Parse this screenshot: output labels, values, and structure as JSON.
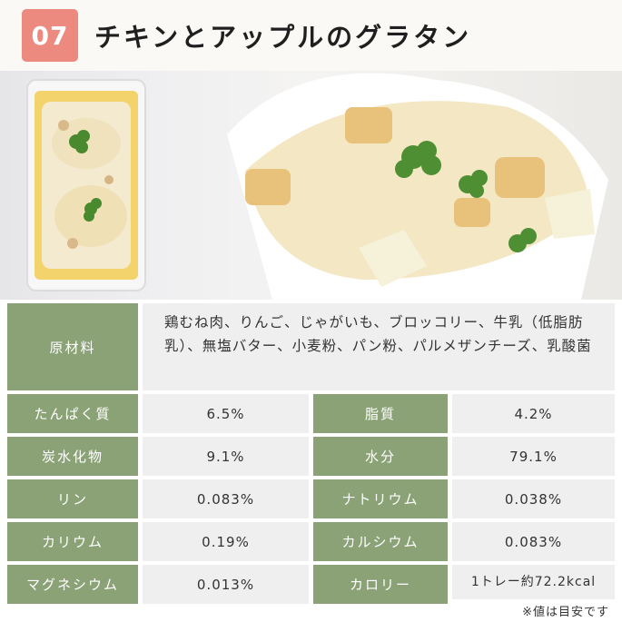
{
  "header": {
    "number": "07",
    "title": "チキンとアップルのグラタン"
  },
  "ingredients": {
    "label": "原材料",
    "value": "鶏むね肉、りんご、じゃがいも、ブロッコリー、牛乳（低脂肪乳）、無塩バター、小麦粉、パン粉、パルメザンチーズ、乳酸菌"
  },
  "nutrition": [
    {
      "label": "たんぱく質",
      "value": "6.5%",
      "label2": "脂質",
      "value2": "4.2%"
    },
    {
      "label": "炭水化物",
      "value": "9.1%",
      "label2": "水分",
      "value2": "79.1%"
    },
    {
      "label": "リン",
      "value": "0.083%",
      "label2": "ナトリウム",
      "value2": "0.038%"
    },
    {
      "label": "カリウム",
      "value": "0.19%",
      "label2": "カルシウム",
      "value2": "0.083%"
    },
    {
      "label": "マグネシウム",
      "value": "0.013%",
      "label2": "カロリー",
      "value2": "1トレー約72.2kcal"
    }
  ],
  "note": "※値は目安です",
  "colors": {
    "badge": "#ec8a80",
    "label_bg": "#8ba277",
    "value_bg": "#efefef"
  }
}
